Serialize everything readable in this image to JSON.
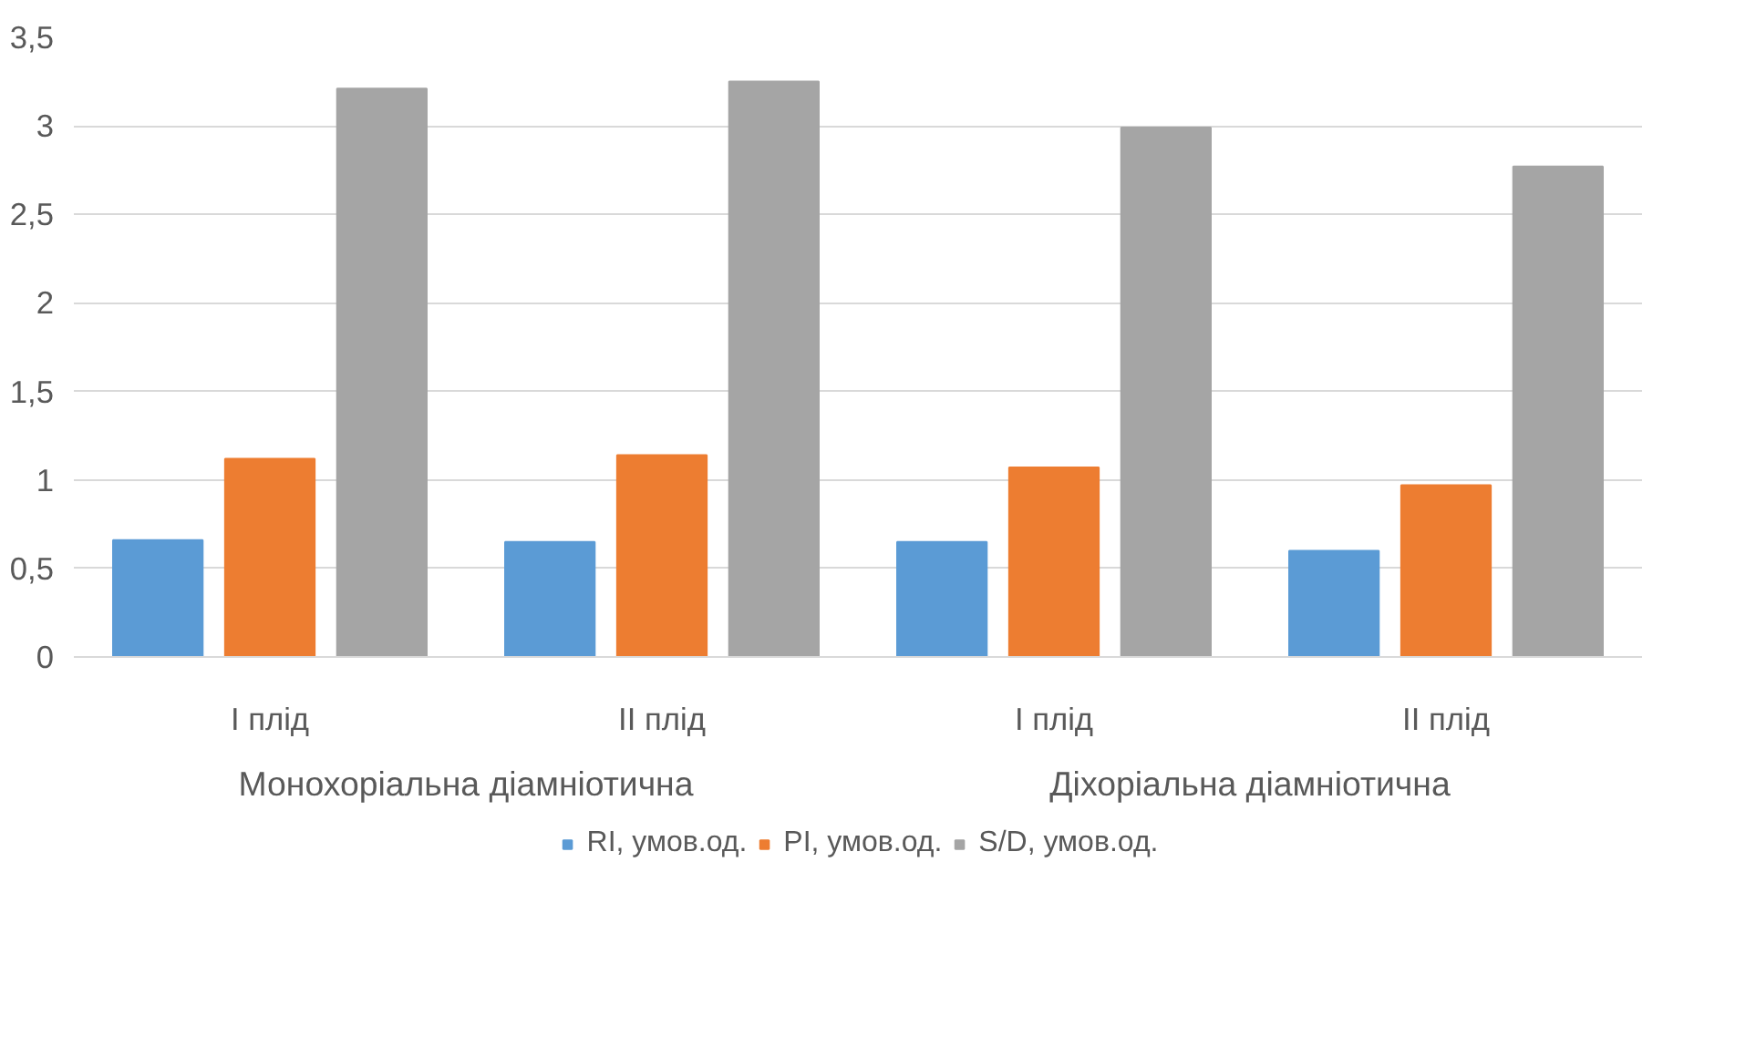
{
  "chart_data": {
    "type": "bar",
    "categories": [
      "I плід",
      "II плід",
      "I плід",
      "II плід"
    ],
    "annotations": [
      "Монохоріальна діамніотична",
      "Діхоріальна діамніотична"
    ],
    "series": [
      {
        "name": "RI, умов.од.",
        "color": "#5b9bd5",
        "values": [
          0.66,
          0.65,
          0.65,
          0.6
        ]
      },
      {
        "name": "PI, умов.од.",
        "color": "#ed7d31",
        "values": [
          1.12,
          1.14,
          1.07,
          0.97
        ]
      },
      {
        "name": "S/D, умов.од.",
        "color": "#a5a5a5",
        "values": [
          3.21,
          3.25,
          2.99,
          2.77
        ]
      }
    ],
    "ylim": [
      0,
      3.5
    ],
    "yticks": [
      0,
      {
        "value": 0.5,
        "label": "0,5"
      },
      1,
      {
        "value": 1.5,
        "label": "1,5"
      },
      2,
      {
        "value": 2.5,
        "label": "2,5"
      },
      3,
      {
        "value": 3.5,
        "label": "3,5"
      }
    ],
    "grid": "y",
    "legend": "bottom"
  }
}
